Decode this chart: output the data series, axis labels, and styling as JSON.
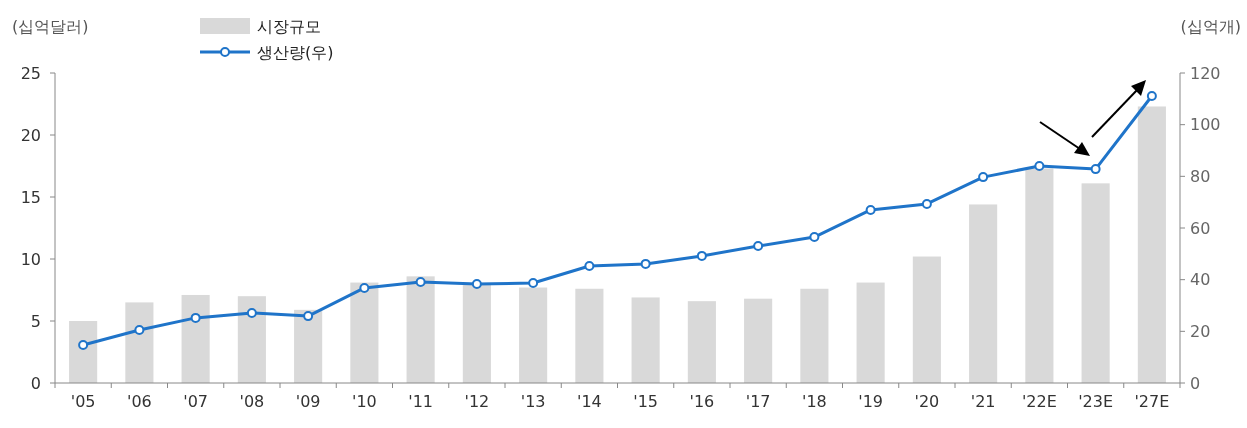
{
  "chart_data": {
    "type": "bar",
    "ylabel": "(십억달러)",
    "y2label": "(십억개)",
    "categories": [
      "'05",
      "'06",
      "'07",
      "'08",
      "'09",
      "'10",
      "'11",
      "'12",
      "'13",
      "'14",
      "'15",
      "'16",
      "'17",
      "'18",
      "'19",
      "'20",
      "'21",
      "'22E",
      "'23E",
      "'27E"
    ],
    "series": [
      {
        "name": "시장규모",
        "color": "#d9d9d9",
        "values": [
          5.0,
          6.5,
          7.1,
          7.0,
          5.9,
          8.1,
          8.6,
          8.0,
          7.7,
          7.6,
          6.9,
          6.6,
          6.8,
          7.6,
          8.1,
          10.2,
          14.4,
          17.3,
          16.1,
          22.3
        ]
      },
      {
        "name": "생산량(우)",
        "type": "line",
        "axis": "y2",
        "color": "#1f74c9",
        "values": [
          14.7,
          20.5,
          25.2,
          27.1,
          25.9,
          36.8,
          39.1,
          38.3,
          38.7,
          45.3,
          46.1,
          49.2,
          53.0,
          56.5,
          67.0,
          69.3,
          79.7,
          84.0,
          82.8,
          111.1
        ]
      }
    ],
    "ylim": [
      0,
      25
    ],
    "yticks": [
      0,
      5,
      10,
      15,
      20,
      25
    ],
    "y2lim": [
      0,
      120
    ],
    "y2ticks": [
      0,
      20,
      40,
      60,
      80,
      100,
      120
    ],
    "legend": "top left",
    "marker": "circle",
    "line_style": "solid",
    "grid": false
  }
}
